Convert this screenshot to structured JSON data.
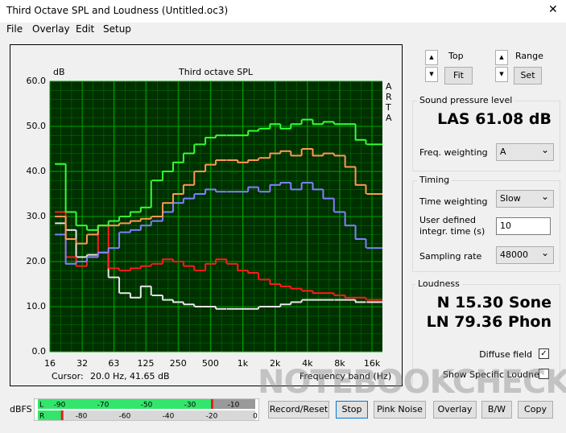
{
  "window": {
    "title": "Third Octave SPL and Loudness (Untitled.oc3)"
  },
  "menu": [
    "File",
    "Overlay",
    "Edit",
    "Setup"
  ],
  "chart_data": {
    "type": "line",
    "step": true,
    "title": "Third octave SPL",
    "ylabel": "dB",
    "xlabel": "Frequency band (Hz)",
    "side_label": "ARTA",
    "cursor_label": "Cursor:",
    "cursor_value": "20.0 Hz, 41.65 dB",
    "x": [
      20,
      25,
      31.5,
      40,
      50,
      63,
      80,
      100,
      125,
      160,
      200,
      250,
      315,
      400,
      500,
      630,
      800,
      1000,
      1250,
      1600,
      2000,
      2500,
      3150,
      4000,
      5000,
      6300,
      8000,
      10000,
      12500,
      16000,
      20000
    ],
    "xlim": [
      16,
      20000
    ],
    "xlog": true,
    "xticks": [
      16,
      32,
      63,
      125,
      250,
      500,
      {
        "value": 1000,
        "label": "1k"
      },
      {
        "value": 2000,
        "label": "2k"
      },
      {
        "value": 4000,
        "label": "4k"
      },
      {
        "value": 8000,
        "label": "8k"
      },
      {
        "value": 16000,
        "label": "16k"
      }
    ],
    "ylim": [
      0,
      60
    ],
    "yticks": [
      {
        "value": 0,
        "label": "0.0"
      },
      {
        "value": 10,
        "label": "10.0"
      },
      {
        "value": 20,
        "label": "20.0"
      },
      {
        "value": 30,
        "label": "30.0"
      },
      {
        "value": 40,
        "label": "40.0"
      },
      {
        "value": 50,
        "label": "50.0"
      },
      {
        "value": 60,
        "label": "60.0"
      }
    ],
    "grid": true,
    "series": [
      {
        "color": "#e6e6e6",
        "values": [
          28.5,
          27,
          21,
          21.5,
          22,
          16.5,
          13,
          12,
          14.5,
          12.5,
          11.5,
          11,
          10.5,
          10,
          10,
          9.5,
          9.5,
          9.5,
          9.5,
          10,
          10,
          10.5,
          11,
          11.5,
          11.5,
          11.5,
          11.5,
          11.5,
          11,
          11,
          11
        ]
      },
      {
        "color": "#ff1a1a",
        "values": [
          31,
          21,
          19,
          21,
          28,
          18.5,
          18,
          18.5,
          19,
          19.5,
          20.5,
          20,
          19,
          18,
          19.5,
          20.5,
          19.5,
          18,
          17.5,
          16,
          15,
          14.5,
          14,
          13.5,
          13,
          13,
          12.5,
          12,
          12,
          11.5,
          11.5
        ]
      },
      {
        "color": "#8080ff",
        "values": [
          26,
          19.5,
          20,
          21,
          22,
          23,
          26.5,
          27,
          28,
          29,
          31,
          33,
          34,
          35,
          36,
          35.5,
          35.5,
          35.5,
          36.5,
          35.5,
          37,
          37.5,
          36,
          37.5,
          36,
          34,
          31,
          28,
          25,
          23,
          23
        ]
      },
      {
        "color": "#ff9955",
        "values": [
          30,
          25,
          24,
          26,
          28,
          28,
          28.5,
          29,
          29.5,
          30,
          33,
          35,
          37,
          40,
          41.5,
          42.5,
          42.5,
          42,
          42.5,
          43,
          44,
          44.5,
          43.5,
          45,
          43.5,
          44,
          43.5,
          41,
          37,
          35,
          35
        ]
      },
      {
        "color": "#33ff33",
        "values": [
          41.65,
          31,
          28,
          27,
          28,
          29,
          30,
          31,
          32,
          38,
          40,
          42,
          44,
          46,
          47.5,
          48,
          48,
          48,
          49,
          49.5,
          50.5,
          49.5,
          50.5,
          51.5,
          50.5,
          51,
          50.5,
          50.5,
          47,
          46,
          46
        ]
      }
    ]
  },
  "controls": {
    "top_label": "Top",
    "fit": "Fit",
    "range_label": "Range",
    "set": "Set"
  },
  "spl": {
    "group": "Sound pressure level",
    "value": "LAS 61.08 dB",
    "weighting_label": "Freq. weighting",
    "weighting": "A"
  },
  "timing": {
    "group": "Timing",
    "time_weighting_label": "Time weighting",
    "time_weighting": "Slow",
    "integr_label": "User defined integr. time (s)",
    "integr_value": "10",
    "sampling_label": "Sampling rate",
    "sampling": "48000"
  },
  "loudness": {
    "group": "Loudness",
    "n": "N 15.30 Sone",
    "ln": "LN 79.36 Phon",
    "diffuse": "Diffuse field",
    "specific": "Show Specific Loudness"
  },
  "meter": {
    "label": "dBFS",
    "left": "L",
    "right": "R",
    "lim": [
      -100,
      0
    ],
    "levels": [
      -20,
      -89
    ],
    "top_ticks": [
      -90,
      -70,
      -50,
      -30,
      -10
    ],
    "bottom_ticks": [
      -80,
      -60,
      -40,
      -20,
      0
    ]
  },
  "buttons": [
    "Record/Reset",
    "Stop",
    "Pink Noise",
    "Overlay",
    "B/W",
    "Copy"
  ],
  "watermark": "NOTEBOOKCHECK"
}
